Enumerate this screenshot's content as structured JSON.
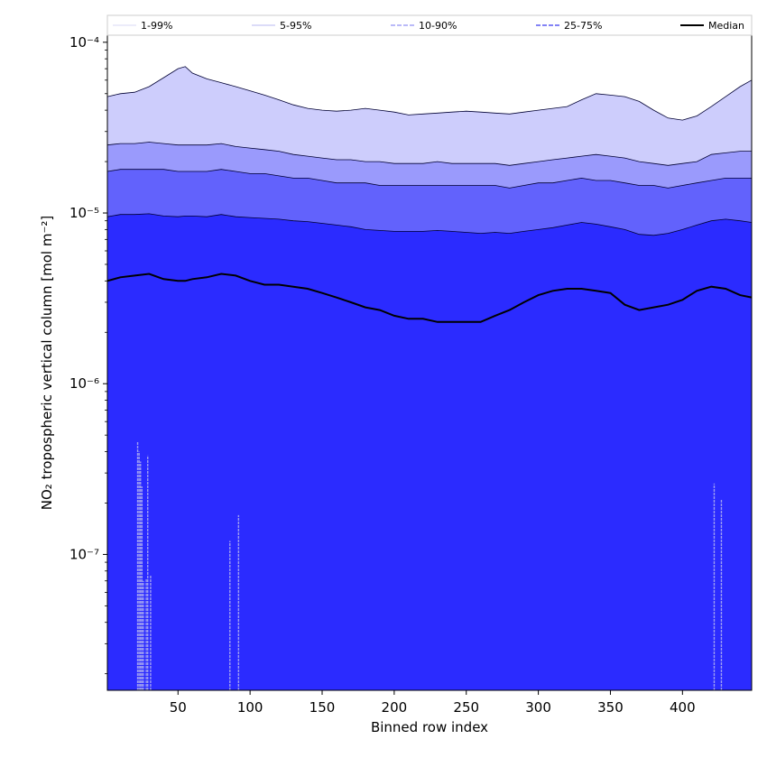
{
  "chart_data": {
    "type": "area",
    "title": "",
    "xlabel": "Binned row index",
    "ylabel": "NO₂ tropospheric vertical column [mol m⁻²]",
    "xlim": [
      1,
      448
    ],
    "ylim": [
      1.6e-08,
      0.00011
    ],
    "yscale": "log",
    "grid": false,
    "legend_position": "top",
    "xticks": [
      50,
      100,
      150,
      200,
      250,
      300,
      350,
      400
    ],
    "xtick_labels": [
      "50",
      "100",
      "150",
      "200",
      "250",
      "300",
      "350",
      "400"
    ],
    "yticks": [
      1e-07,
      1e-06,
      1e-05,
      0.0001
    ],
    "ytick_labels": [
      "10⁻⁷",
      "10⁻⁶",
      "10⁻⁵",
      "10⁻⁴"
    ],
    "legend": [
      "1-99%",
      "5-95%",
      "10-90%",
      "25-75%",
      "Median"
    ],
    "colors": {
      "band_1_99": "#cdcdfc",
      "band_5_95": "#9a9afc",
      "band_10_90": "#6262fc",
      "band_25_75": "#2b2bff",
      "median": "#000000",
      "legend_1_99": "#d8d8f4",
      "legend_5_95": "#b8b8f0",
      "legend_10_90": "#9090f4",
      "legend_25_75": "#5a5af4"
    },
    "x": [
      1,
      10,
      20,
      30,
      40,
      50,
      55,
      60,
      70,
      80,
      90,
      100,
      110,
      120,
      130,
      140,
      150,
      160,
      170,
      180,
      190,
      200,
      210,
      220,
      230,
      240,
      250,
      260,
      270,
      280,
      290,
      300,
      310,
      320,
      330,
      340,
      350,
      360,
      370,
      380,
      390,
      400,
      410,
      420,
      430,
      440,
      448
    ],
    "series": [
      {
        "name": "1-99% upper",
        "values": [
          4.8e-05,
          5e-05,
          5.1e-05,
          5.5e-05,
          6.2e-05,
          7e-05,
          7.2e-05,
          6.6e-05,
          6.1e-05,
          5.8e-05,
          5.5e-05,
          5.2e-05,
          4.9e-05,
          4.6e-05,
          4.3e-05,
          4.1e-05,
          4e-05,
          3.95e-05,
          4e-05,
          4.1e-05,
          4e-05,
          3.9e-05,
          3.75e-05,
          3.8e-05,
          3.85e-05,
          3.9e-05,
          3.95e-05,
          3.9e-05,
          3.85e-05,
          3.8e-05,
          3.9e-05,
          4e-05,
          4.1e-05,
          4.2e-05,
          4.6e-05,
          5e-05,
          4.9e-05,
          4.8e-05,
          4.5e-05,
          4e-05,
          3.6e-05,
          3.5e-05,
          3.7e-05,
          4.2e-05,
          4.8e-05,
          5.5e-05,
          6e-05
        ]
      },
      {
        "name": "5-95% upper",
        "values": [
          2.5e-05,
          2.55e-05,
          2.55e-05,
          2.6e-05,
          2.55e-05,
          2.5e-05,
          2.5e-05,
          2.5e-05,
          2.5e-05,
          2.55e-05,
          2.45e-05,
          2.4e-05,
          2.35e-05,
          2.3e-05,
          2.2e-05,
          2.15e-05,
          2.1e-05,
          2.05e-05,
          2.05e-05,
          2e-05,
          2e-05,
          1.95e-05,
          1.95e-05,
          1.95e-05,
          2e-05,
          1.95e-05,
          1.95e-05,
          1.95e-05,
          1.95e-05,
          1.9e-05,
          1.95e-05,
          2e-05,
          2.05e-05,
          2.1e-05,
          2.15e-05,
          2.2e-05,
          2.15e-05,
          2.1e-05,
          2e-05,
          1.95e-05,
          1.9e-05,
          1.95e-05,
          2e-05,
          2.2e-05,
          2.25e-05,
          2.3e-05,
          2.3e-05
        ]
      },
      {
        "name": "10-90% upper",
        "values": [
          1.75e-05,
          1.8e-05,
          1.8e-05,
          1.8e-05,
          1.8e-05,
          1.75e-05,
          1.75e-05,
          1.75e-05,
          1.75e-05,
          1.8e-05,
          1.75e-05,
          1.7e-05,
          1.7e-05,
          1.65e-05,
          1.6e-05,
          1.6e-05,
          1.55e-05,
          1.5e-05,
          1.5e-05,
          1.5e-05,
          1.45e-05,
          1.45e-05,
          1.45e-05,
          1.45e-05,
          1.45e-05,
          1.45e-05,
          1.45e-05,
          1.45e-05,
          1.45e-05,
          1.4e-05,
          1.45e-05,
          1.5e-05,
          1.5e-05,
          1.55e-05,
          1.6e-05,
          1.55e-05,
          1.55e-05,
          1.5e-05,
          1.45e-05,
          1.45e-05,
          1.4e-05,
          1.45e-05,
          1.5e-05,
          1.55e-05,
          1.6e-05,
          1.6e-05,
          1.6e-05
        ]
      },
      {
        "name": "25-75% upper",
        "values": [
          9.5e-06,
          9.8e-06,
          9.8e-06,
          9.9e-06,
          9.6e-06,
          9.5e-06,
          9.6e-06,
          9.6e-06,
          9.5e-06,
          9.8e-06,
          9.5e-06,
          9.4e-06,
          9.3e-06,
          9.2e-06,
          9e-06,
          8.9e-06,
          8.7e-06,
          8.5e-06,
          8.3e-06,
          8e-06,
          7.9e-06,
          7.8e-06,
          7.8e-06,
          7.8e-06,
          7.9e-06,
          7.8e-06,
          7.7e-06,
          7.6e-06,
          7.7e-06,
          7.6e-06,
          7.8e-06,
          8e-06,
          8.2e-06,
          8.5e-06,
          8.8e-06,
          8.6e-06,
          8.3e-06,
          8e-06,
          7.5e-06,
          7.4e-06,
          7.6e-06,
          8e-06,
          8.5e-06,
          9e-06,
          9.2e-06,
          9e-06,
          8.8e-06
        ]
      },
      {
        "name": "Median",
        "values": [
          4e-06,
          4.2e-06,
          4.3e-06,
          4.4e-06,
          4.1e-06,
          4e-06,
          4e-06,
          4.1e-06,
          4.2e-06,
          4.4e-06,
          4.3e-06,
          4e-06,
          3.8e-06,
          3.8e-06,
          3.7e-06,
          3.6e-06,
          3.4e-06,
          3.2e-06,
          3e-06,
          2.8e-06,
          2.7e-06,
          2.5e-06,
          2.4e-06,
          2.4e-06,
          2.3e-06,
          2.3e-06,
          2.3e-06,
          2.3e-06,
          2.5e-06,
          2.7e-06,
          3e-06,
          3.3e-06,
          3.5e-06,
          3.6e-06,
          3.6e-06,
          3.5e-06,
          3.4e-06,
          2.9e-06,
          2.7e-06,
          2.8e-06,
          2.9e-06,
          3.1e-06,
          3.5e-06,
          3.7e-06,
          3.6e-06,
          3.3e-06,
          3.2e-06
        ]
      }
    ],
    "lower_spikes": [
      {
        "x": 22,
        "top": 4.6e-07
      },
      {
        "x": 23,
        "top": 4e-07
      },
      {
        "x": 24,
        "top": 3.5e-07
      },
      {
        "x": 25,
        "top": 2.5e-07
      },
      {
        "x": 26,
        "top": 7e-08
      },
      {
        "x": 28,
        "top": 7.2e-08
      },
      {
        "x": 29,
        "top": 3.8e-07
      },
      {
        "x": 31,
        "top": 7.5e-08
      },
      {
        "x": 86,
        "top": 1.2e-07
      },
      {
        "x": 92,
        "top": 1.7e-07
      },
      {
        "x": 422,
        "top": 2.6e-07
      },
      {
        "x": 427,
        "top": 2.1e-07
      }
    ]
  }
}
